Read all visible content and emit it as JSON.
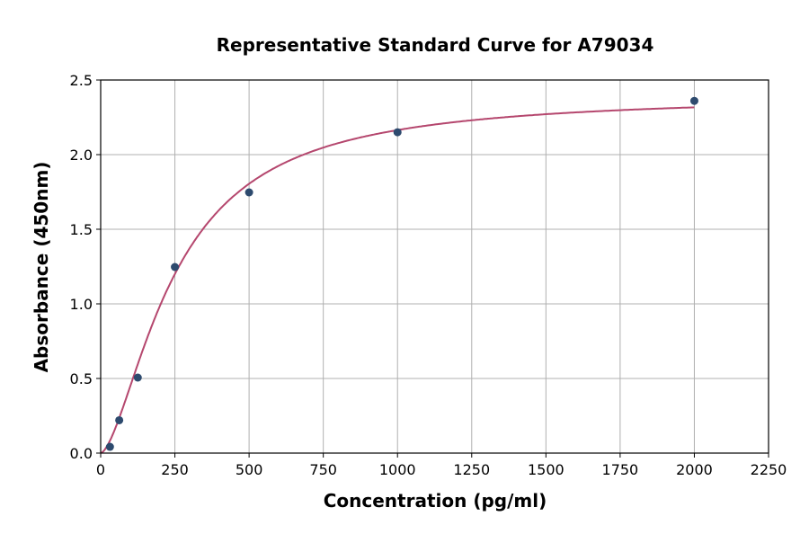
{
  "chart_data": {
    "type": "scatter",
    "title": "Representative Standard Curve for A79034",
    "xlabel": "Concentration (pg/ml)",
    "ylabel": "Absorbance (450nm)",
    "xlim": [
      0,
      2250
    ],
    "ylim": [
      0,
      2.5
    ],
    "xticks": [
      0,
      250,
      500,
      750,
      1000,
      1250,
      1500,
      1750,
      2000,
      2250
    ],
    "yticks": [
      "0.0",
      "0.5",
      "1.0",
      "1.5",
      "2.0",
      "2.5"
    ],
    "grid": true,
    "points": {
      "x": [
        31.25,
        62.5,
        125,
        250,
        500,
        1000,
        2000
      ],
      "y": [
        0.042,
        0.22,
        0.506,
        1.247,
        1.747,
        2.15,
        2.36
      ],
      "color": "#2d4a6e"
    },
    "fit_curve": {
      "model": "4PL",
      "a": 0,
      "b": 1.6,
      "c": 250,
      "d": 2.4,
      "color": "#b5476e"
    }
  }
}
